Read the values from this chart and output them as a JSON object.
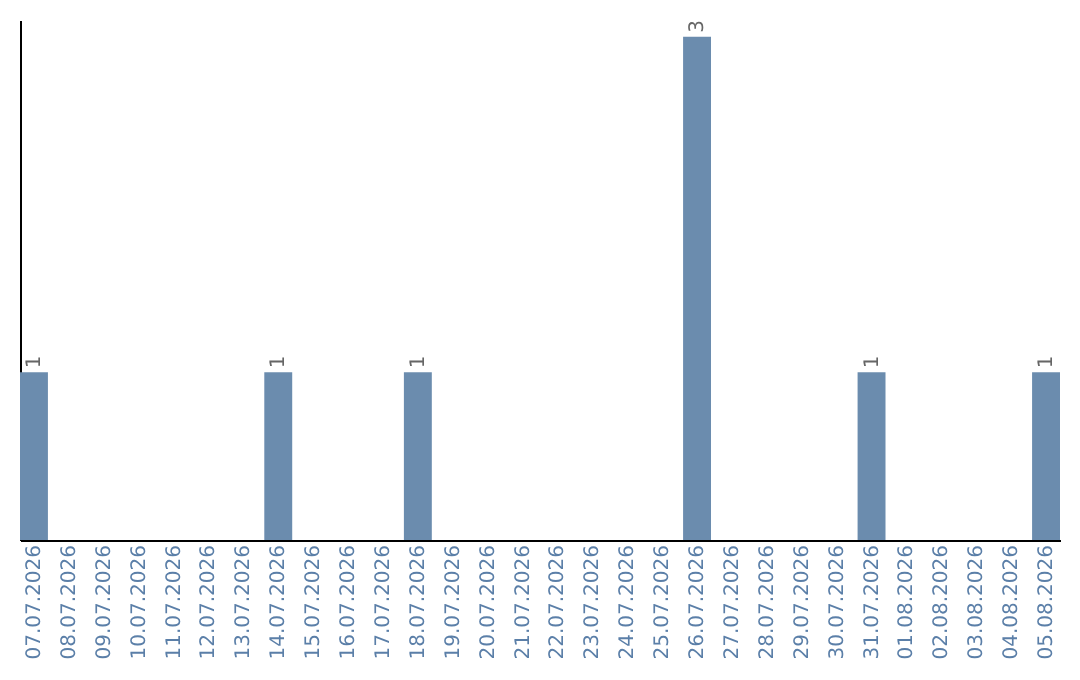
{
  "chart_data": {
    "type": "bar",
    "categories": [
      "07.07.2026",
      "08.07.2026",
      "09.07.2026",
      "10.07.2026",
      "11.07.2026",
      "12.07.2026",
      "13.07.2026",
      "14.07.2026",
      "15.07.2026",
      "16.07.2026",
      "17.07.2026",
      "18.07.2026",
      "19.07.2026",
      "20.07.2026",
      "21.07.2026",
      "22.07.2026",
      "23.07.2026",
      "24.07.2026",
      "25.07.2026",
      "26.07.2026",
      "27.07.2026",
      "28.07.2026",
      "29.07.2026",
      "30.07.2026",
      "31.07.2026",
      "01.08.2026",
      "02.08.2026",
      "03.08.2026",
      "04.08.2026",
      "05.08.2026"
    ],
    "values": [
      1,
      0,
      0,
      0,
      0,
      0,
      0,
      1,
      0,
      0,
      0,
      1,
      0,
      0,
      0,
      0,
      0,
      0,
      0,
      3,
      0,
      0,
      0,
      0,
      1,
      0,
      0,
      0,
      0,
      1
    ],
    "value_labels": [
      "1",
      null,
      null,
      null,
      null,
      null,
      null,
      "1",
      null,
      null,
      null,
      "1",
      null,
      null,
      null,
      null,
      null,
      null,
      null,
      "3",
      null,
      null,
      null,
      null,
      "1",
      null,
      null,
      null,
      null,
      "1"
    ],
    "color": "#6b8cae",
    "ylim": [
      0,
      3.1
    ],
    "tick_labels": "x",
    "grid": false
  }
}
